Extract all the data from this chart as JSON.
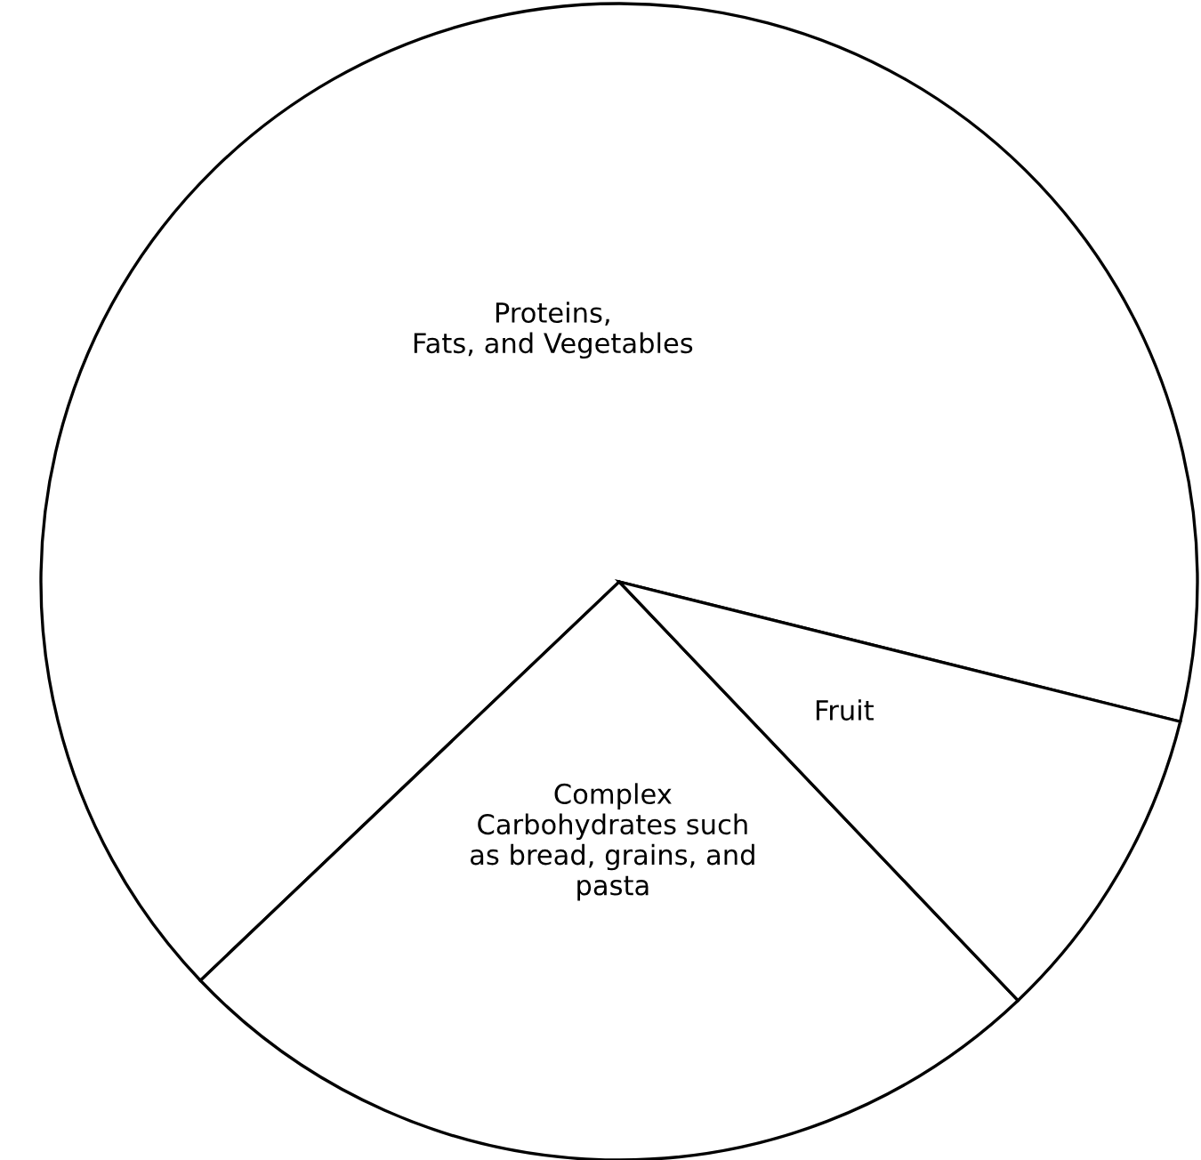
{
  "chart_data": {
    "type": "pie",
    "categories": [
      "Proteins,\nFats, and Vegetables",
      "Complex\nCarbohydrates such\nas bread, grains, and\npasta",
      "Fruit"
    ],
    "values": [
      66,
      25,
      9
    ],
    "colors": [
      "#ffffff",
      "#ffffff",
      "#ffffff"
    ]
  }
}
